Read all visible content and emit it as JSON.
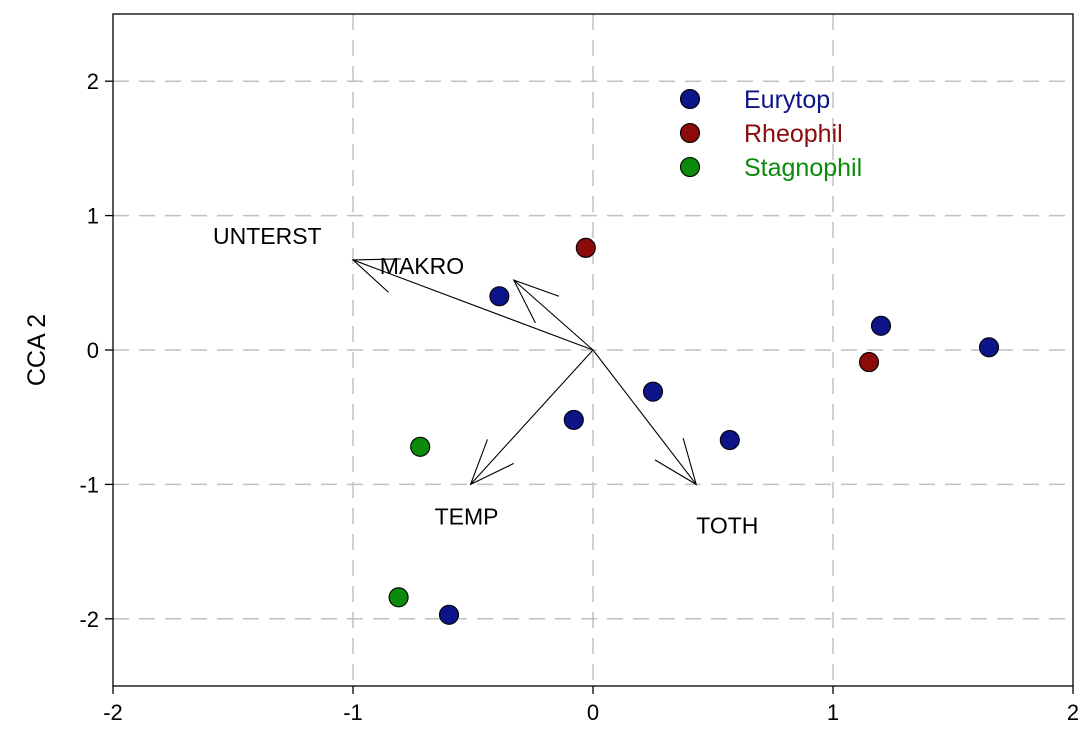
{
  "chart_data": {
    "type": "scatter",
    "title": "",
    "xlabel": "",
    "ylabel": "CCA 2",
    "xlim": [
      -2,
      2
    ],
    "ylim": [
      -2.5,
      2.5
    ],
    "x_ticks": [
      "-2",
      "-1",
      "0",
      "1",
      "2"
    ],
    "y_ticks": [
      "-2",
      "-1",
      "0",
      "1",
      "2"
    ],
    "grid": true,
    "legend_position": "top-right",
    "series": [
      {
        "name": "Eurytop",
        "color": "#0c1488",
        "points": [
          [
            -0.39,
            0.4
          ],
          [
            0.25,
            -0.31
          ],
          [
            -0.08,
            -0.52
          ],
          [
            0.57,
            -0.67
          ],
          [
            1.2,
            0.18
          ],
          [
            1.65,
            0.02
          ],
          [
            -0.6,
            -1.97
          ]
        ]
      },
      {
        "name": "Rheophil",
        "color": "#8b0a0a",
        "points": [
          [
            -0.03,
            0.76
          ],
          [
            1.15,
            -0.09
          ]
        ]
      },
      {
        "name": "Stagnophil",
        "color": "#0b8a0b",
        "points": [
          [
            -0.72,
            -0.72
          ],
          [
            -0.81,
            -1.84
          ]
        ]
      }
    ],
    "vectors": [
      {
        "label": "UNTERST",
        "x": -1.0,
        "y": 0.67
      },
      {
        "label": "MAKRO",
        "x": -0.33,
        "y": 0.52
      },
      {
        "label": "TEMP",
        "x": -0.51,
        "y": -1.0
      },
      {
        "label": "TOTH",
        "x": 0.43,
        "y": -1.0
      }
    ]
  }
}
